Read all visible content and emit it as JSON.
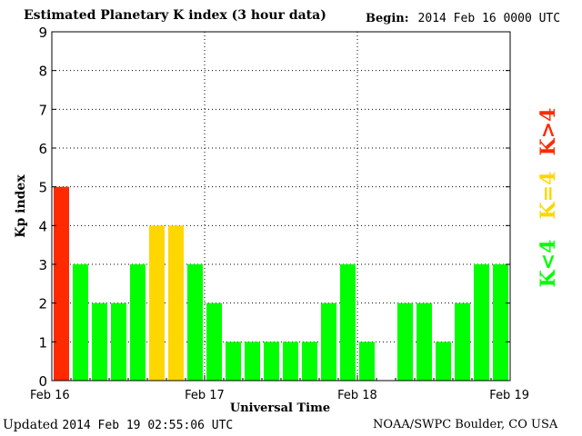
{
  "title": "Estimated Planetary K index (3 hour data)",
  "begin_label": "Begin:",
  "begin_value": "2014 Feb 16 0000 UTC",
  "footer_updated_label": "Updated",
  "footer_updated_value": "2014 Feb 19 02:55:06 UTC",
  "footer_source": "NOAA/SWPC Boulder, CO USA",
  "legend": [
    {
      "label": "K<4",
      "color": "#00ff00"
    },
    {
      "label": "K=4",
      "color": "#ffd700"
    },
    {
      "label": "K>4",
      "color": "#ff2a00"
    }
  ],
  "chart_data": {
    "type": "bar",
    "xlabel": "Universal Time",
    "ylabel": "Kp index",
    "ylim": [
      0,
      9
    ],
    "yticks": [
      0,
      1,
      2,
      3,
      4,
      5,
      6,
      7,
      8,
      9
    ],
    "xticks": [
      "Feb 16",
      "Feb 17",
      "Feb 18",
      "Feb 19"
    ],
    "grid": true,
    "interval_hours": 3,
    "values": [
      5,
      3,
      2,
      2,
      3,
      4,
      4,
      3,
      2,
      1,
      1,
      1,
      1,
      1,
      2,
      3,
      1,
      0,
      2,
      2,
      1,
      2,
      3,
      3
    ],
    "colors": {
      "below4": "#00ff00",
      "equal4": "#ffd700",
      "above4": "#ff2a00"
    }
  }
}
